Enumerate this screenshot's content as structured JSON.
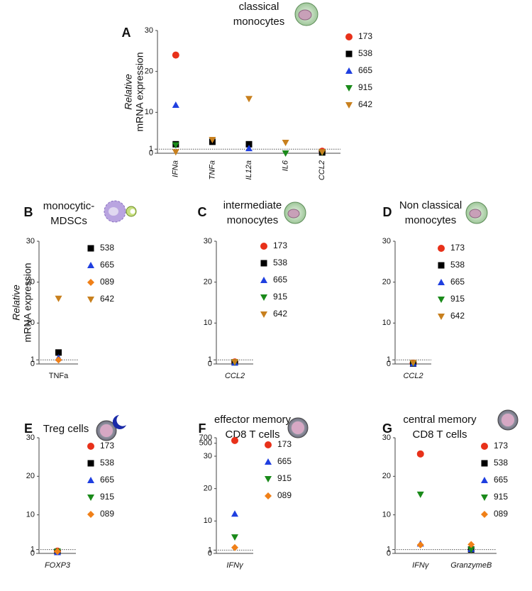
{
  "chart_data": [
    {
      "type": "dot",
      "panel": "A",
      "title": [
        "classical",
        "monocytes"
      ],
      "ylabel": [
        "Relative",
        "mRNA expression"
      ],
      "categories": [
        "IFNa",
        "TNFa",
        "IL12a",
        "IL6",
        "CCL2"
      ],
      "italic_categories": true,
      "rotate_categories": true,
      "ylim": [
        0,
        30
      ],
      "yticks": [
        0,
        1,
        10,
        20,
        30
      ],
      "reference_line": 1,
      "series": [
        {
          "name": "173",
          "color": "#e8311a",
          "marker": "circle",
          "values": [
            24,
            null,
            null,
            null,
            0.5
          ]
        },
        {
          "name": "538",
          "color": "#000000",
          "marker": "square",
          "values": [
            2.2,
            2.8,
            2.2,
            null,
            0.2
          ]
        },
        {
          "name": "665",
          "color": "#1f3fe0",
          "marker": "triangle-up",
          "values": [
            11.8,
            null,
            1.2,
            null,
            null
          ]
        },
        {
          "name": "915",
          "color": "#1a8a1a",
          "marker": "triangle-down",
          "values": [
            2,
            null,
            null,
            0,
            0.2
          ]
        },
        {
          "name": "642",
          "color": "#c8801e",
          "marker": "triangle-down",
          "values": [
            0.3,
            3.3,
            13.3,
            2.6,
            0.3
          ]
        }
      ]
    },
    {
      "type": "dot",
      "panel": "B",
      "title": [
        "monocytic-",
        "MDSCs"
      ],
      "ylabel": [
        "Relative",
        "mRNA expression"
      ],
      "categories": [
        "TNFa"
      ],
      "italic_categories": false,
      "rotate_categories": false,
      "ylim": [
        0,
        30
      ],
      "yticks": [
        0,
        1,
        10,
        20,
        30
      ],
      "reference_line": 1,
      "series": [
        {
          "name": "538",
          "color": "#000000",
          "marker": "square",
          "values": [
            2.8
          ]
        },
        {
          "name": "665",
          "color": "#1f3fe0",
          "marker": "triangle-up",
          "values": [
            1.5
          ]
        },
        {
          "name": "089",
          "color": "#f08018",
          "marker": "diamond",
          "values": [
            1.0
          ]
        },
        {
          "name": "642",
          "color": "#c8801e",
          "marker": "triangle-down",
          "values": [
            16
          ]
        }
      ]
    },
    {
      "type": "dot",
      "panel": "C",
      "title": [
        "intermediate",
        "monocytes"
      ],
      "categories": [
        "CCL2"
      ],
      "italic_categories": true,
      "rotate_categories": false,
      "ylim": [
        0,
        30
      ],
      "yticks": [
        0,
        1,
        10,
        20,
        30
      ],
      "reference_line": 1,
      "series": [
        {
          "name": "173",
          "color": "#e8311a",
          "marker": "circle",
          "values": [
            0.5
          ]
        },
        {
          "name": "538",
          "color": "#000000",
          "marker": "square",
          "values": [
            0.4
          ]
        },
        {
          "name": "665",
          "color": "#1f3fe0",
          "marker": "triangle-up",
          "values": [
            0.3
          ]
        },
        {
          "name": "915",
          "color": "#1a8a1a",
          "marker": "triangle-down",
          "values": [
            0.4
          ]
        },
        {
          "name": "642",
          "color": "#c8801e",
          "marker": "triangle-down",
          "values": [
            0.5
          ]
        }
      ]
    },
    {
      "type": "dot",
      "panel": "D",
      "title": [
        "Non classical",
        "monocytes"
      ],
      "categories": [
        "CCL2"
      ],
      "italic_categories": true,
      "rotate_categories": false,
      "ylim": [
        0,
        30
      ],
      "yticks": [
        0,
        1,
        10,
        20,
        30
      ],
      "reference_line": 1,
      "series": [
        {
          "name": "173",
          "color": "#e8311a",
          "marker": "circle",
          "values": [
            0.2
          ]
        },
        {
          "name": "538",
          "color": "#000000",
          "marker": "square",
          "values": [
            0.1
          ]
        },
        {
          "name": "665",
          "color": "#1f3fe0",
          "marker": "triangle-up",
          "values": [
            0.1
          ]
        },
        {
          "name": "915",
          "color": "#1a8a1a",
          "marker": "triangle-down",
          "values": [
            0.2
          ]
        },
        {
          "name": "642",
          "color": "#c8801e",
          "marker": "triangle-down",
          "values": [
            0.3
          ]
        }
      ]
    },
    {
      "type": "dot",
      "panel": "E",
      "title": [
        "Treg cells"
      ],
      "categories": [
        "FOXP3"
      ],
      "italic_categories": true,
      "rotate_categories": false,
      "ylim": [
        0,
        30
      ],
      "yticks": [
        0,
        1,
        10,
        20,
        30
      ],
      "reference_line": 1,
      "series": [
        {
          "name": "173",
          "color": "#e8311a",
          "marker": "circle",
          "values": [
            0.6
          ]
        },
        {
          "name": "538",
          "color": "#000000",
          "marker": "square",
          "values": [
            0.4
          ]
        },
        {
          "name": "665",
          "color": "#1f3fe0",
          "marker": "triangle-up",
          "values": [
            0.3
          ]
        },
        {
          "name": "915",
          "color": "#1a8a1a",
          "marker": "triangle-down",
          "values": [
            0.5
          ]
        },
        {
          "name": "089",
          "color": "#f08018",
          "marker": "diamond",
          "values": [
            0.5
          ]
        }
      ]
    },
    {
      "type": "dot",
      "panel": "F",
      "title": [
        "effector memory",
        "CD8 T cells"
      ],
      "categories": [
        "IFNγ"
      ],
      "italic_categories": true,
      "rotate_categories": false,
      "ylim": [
        0,
        700
      ],
      "yticks": [
        0,
        1,
        10,
        20,
        30,
        500,
        700
      ],
      "axis_break": 30,
      "reference_line": 1,
      "series": [
        {
          "name": "173",
          "color": "#e8311a",
          "marker": "circle",
          "values": [
            600
          ]
        },
        {
          "name": "665",
          "color": "#1f3fe0",
          "marker": "triangle-up",
          "values": [
            12.2
          ]
        },
        {
          "name": "915",
          "color": "#1a8a1a",
          "marker": "triangle-down",
          "values": [
            5
          ]
        },
        {
          "name": "089",
          "color": "#f08018",
          "marker": "diamond",
          "values": [
            1.8
          ]
        }
      ]
    },
    {
      "type": "dot",
      "panel": "G",
      "title": [
        "central memory",
        "CD8 T cells"
      ],
      "categories": [
        "IFNγ",
        "GranzymeB"
      ],
      "italic_categories": true,
      "rotate_categories": false,
      "ylim": [
        0,
        30
      ],
      "yticks": [
        0,
        1,
        10,
        20,
        30
      ],
      "reference_line": 1,
      "series": [
        {
          "name": "173",
          "color": "#e8311a",
          "marker": "circle",
          "values": [
            25.8,
            null
          ]
        },
        {
          "name": "538",
          "color": "#000000",
          "marker": "square",
          "values": [
            null,
            1.0
          ]
        },
        {
          "name": "665",
          "color": "#1f3fe0",
          "marker": "triangle-up",
          "values": [
            2.5,
            1.1
          ]
        },
        {
          "name": "915",
          "color": "#1a8a1a",
          "marker": "triangle-down",
          "values": [
            15.3,
            1.0
          ]
        },
        {
          "name": "089",
          "color": "#f08018",
          "marker": "diamond",
          "values": [
            2.2,
            2.3
          ]
        }
      ]
    }
  ]
}
